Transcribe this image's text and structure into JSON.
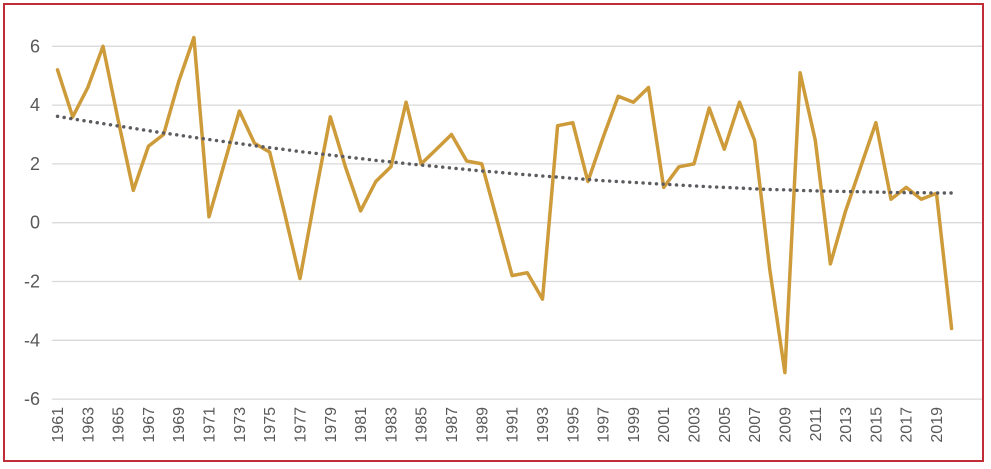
{
  "chart_data": {
    "type": "line",
    "title": "",
    "xlabel": "",
    "ylabel": "",
    "legend": "none",
    "grid": "horizontal",
    "x_start_year": 1961,
    "x_end_year": 2020,
    "x_axis": {
      "tick_labels": [
        "1961",
        "1963",
        "1965",
        "1967",
        "1969",
        "1971",
        "1973",
        "1975",
        "1977",
        "1979",
        "1981",
        "1983",
        "1985",
        "1987",
        "1989",
        "1991",
        "1993",
        "1995",
        "1997",
        "1999",
        "2001",
        "2003",
        "2005",
        "2007",
        "2009",
        "2011",
        "2013",
        "2015",
        "2017",
        "2019"
      ]
    },
    "y_axis": {
      "tick_labels": [
        "6",
        "4",
        "2",
        "0",
        "-2",
        "-4",
        "-6"
      ],
      "ticks": [
        6,
        4,
        2,
        0,
        -2,
        -4,
        -6
      ],
      "range": [
        -6,
        6
      ]
    },
    "series": [
      {
        "name": "annual-values",
        "style": "solid",
        "color": "#ce9b3b",
        "values": [
          5.2,
          3.6,
          4.6,
          6.0,
          3.5,
          1.1,
          2.6,
          3.0,
          4.8,
          6.3,
          0.2,
          2.0,
          3.8,
          2.7,
          2.4,
          0.3,
          -1.9,
          0.9,
          3.6,
          1.9,
          0.4,
          1.4,
          1.9,
          4.1,
          2.0,
          2.5,
          3.0,
          2.1,
          2.0,
          0.1,
          -1.8,
          -1.7,
          -2.6,
          3.3,
          3.4,
          1.4,
          2.9,
          4.3,
          4.1,
          4.6,
          1.2,
          1.9,
          2.0,
          3.9,
          2.5,
          4.1,
          2.8,
          -1.6,
          -5.1,
          5.1,
          2.8,
          -1.4,
          0.4,
          1.9,
          3.4,
          0.8,
          1.2,
          0.8,
          1.0,
          -3.6
        ]
      },
      {
        "name": "trendline",
        "style": "dotted",
        "color": "#5b5b60",
        "values": [
          3.62,
          3.53,
          3.45,
          3.37,
          3.29,
          3.21,
          3.13,
          3.05,
          2.98,
          2.9,
          2.83,
          2.76,
          2.69,
          2.62,
          2.55,
          2.49,
          2.42,
          2.36,
          2.3,
          2.24,
          2.18,
          2.12,
          2.07,
          2.01,
          1.96,
          1.91,
          1.86,
          1.81,
          1.76,
          1.72,
          1.67,
          1.63,
          1.59,
          1.55,
          1.51,
          1.47,
          1.43,
          1.4,
          1.37,
          1.34,
          1.31,
          1.28,
          1.25,
          1.22,
          1.2,
          1.18,
          1.15,
          1.13,
          1.12,
          1.1,
          1.08,
          1.07,
          1.06,
          1.05,
          1.04,
          1.03,
          1.02,
          1.02,
          1.01,
          1.01
        ]
      }
    ]
  },
  "colors": {
    "line": "#ce9b3b",
    "trend_dots": "#5b5b60",
    "gridline": "#d9d9d9",
    "axis_text": "#595959",
    "frame_border": "#bf2d38",
    "background": "#ffffff"
  }
}
